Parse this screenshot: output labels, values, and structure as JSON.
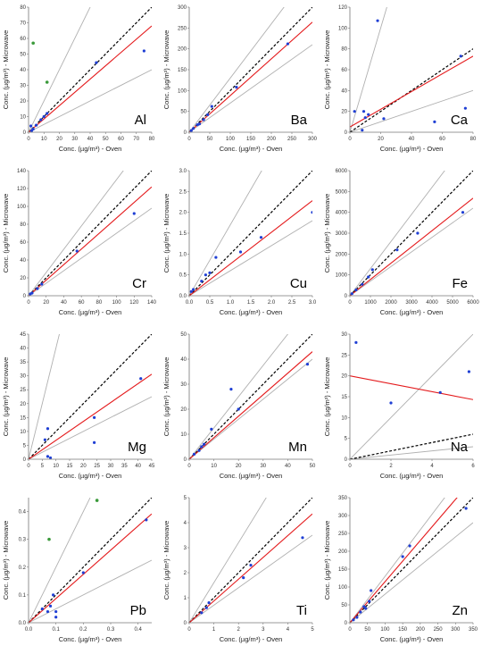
{
  "colors": {
    "one_to_one": "#000000",
    "ratio_bounds": "#b0b0b0",
    "regression": "#e41a1c",
    "points_blue": "#1f3fd4",
    "points_green": "#3a9a3a",
    "axis": "#777777"
  },
  "chart_data": [
    {
      "type": "scatter",
      "title": "Al",
      "xlabel": "Conc. (µg/m³) - Oven",
      "ylabel": "Conc. (µg/m³) - Microwave",
      "xlim": [
        0,
        80
      ],
      "ylim": [
        0,
        80
      ],
      "xticks": [
        "0",
        "10",
        "20",
        "30",
        "40",
        "50",
        "60",
        "70",
        "80"
      ],
      "yticks": [
        "0",
        "10",
        "20",
        "30",
        "40",
        "50",
        "60",
        "70",
        "80"
      ],
      "bound_slopes": [
        0.5,
        2
      ],
      "regression": [
        0,
        0.85
      ],
      "points": [
        [
          1.5,
          4
        ],
        [
          2,
          1
        ],
        [
          3,
          2
        ],
        [
          5,
          4.5
        ],
        [
          8,
          8
        ],
        [
          10,
          10
        ],
        [
          12,
          12
        ],
        [
          44,
          44.5
        ],
        [
          75,
          52
        ]
      ],
      "green_points": [
        [
          3,
          57
        ],
        [
          12,
          32
        ]
      ]
    },
    {
      "type": "scatter",
      "title": "Ba",
      "xlabel": "Conc. (µg/m³) - Oven",
      "ylabel": "Conc. (µg/m³) - Microwave",
      "xlim": [
        0,
        300
      ],
      "ylim": [
        0,
        300
      ],
      "xticks": [
        "0",
        "50",
        "100",
        "150",
        "200",
        "250",
        "300"
      ],
      "yticks": [
        "0",
        "50",
        "100",
        "150",
        "200",
        "250",
        "300"
      ],
      "bound_slopes": [
        0.7,
        1.3
      ],
      "regression": [
        0,
        0.88
      ],
      "points": [
        [
          5,
          4
        ],
        [
          10,
          9
        ],
        [
          20,
          18
        ],
        [
          25,
          20
        ],
        [
          35,
          30
        ],
        [
          45,
          42
        ],
        [
          55,
          62
        ],
        [
          115,
          108
        ],
        [
          240,
          212
        ]
      ],
      "green_points": []
    },
    {
      "type": "scatter",
      "title": "Ca",
      "xlabel": "Conc. (µg/m³) - Oven",
      "ylabel": "Conc. (µg/m³) - Microwave",
      "xlim": [
        0,
        80
      ],
      "ylim": [
        0,
        120
      ],
      "xticks": [
        "0",
        "20",
        "40",
        "60",
        "80"
      ],
      "yticks": [
        "0",
        "20",
        "40",
        "60",
        "80",
        "100",
        "120"
      ],
      "bound_slopes": [
        0.5,
        5
      ],
      "regression": [
        5,
        0.85
      ],
      "points": [
        [
          3,
          20
        ],
        [
          8,
          2
        ],
        [
          9,
          20
        ],
        [
          10,
          14
        ],
        [
          12,
          17
        ],
        [
          18,
          107
        ],
        [
          22,
          13
        ],
        [
          55,
          10
        ],
        [
          72,
          73
        ],
        [
          75,
          23
        ]
      ],
      "green_points": []
    },
    {
      "type": "scatter",
      "title": "Cr",
      "xlabel": "Conc. (µg/m³) - Oven",
      "ylabel": "Conc. (µg/m³) - Microwave",
      "xlim": [
        0,
        140
      ],
      "ylim": [
        0,
        140
      ],
      "xticks": [
        "0",
        "20",
        "40",
        "60",
        "80",
        "100",
        "120",
        "140"
      ],
      "yticks": [
        "0",
        "20",
        "40",
        "60",
        "80",
        "100",
        "120",
        "140"
      ],
      "bound_slopes": [
        0.7,
        1.3
      ],
      "regression": [
        0,
        0.87
      ],
      "points": [
        [
          2,
          2
        ],
        [
          4,
          3
        ],
        [
          10,
          8
        ],
        [
          15,
          13
        ],
        [
          55,
          50
        ],
        [
          120,
          92
        ]
      ],
      "green_points": []
    },
    {
      "type": "scatter",
      "title": "Cu",
      "xlabel": "Conc. (µg/m³) - Oven",
      "ylabel": "Conc. (µg/m³) - Microwave",
      "xlim": [
        0,
        3
      ],
      "ylim": [
        0,
        3
      ],
      "xticks": [
        "0.0",
        "0.5",
        "1.0",
        "1.5",
        "2.0",
        "2.5",
        "3.0"
      ],
      "yticks": [
        "0.0",
        "0.5",
        "1.0",
        "1.5",
        "2.0",
        "2.5",
        "3.0"
      ],
      "bound_slopes": [
        0.6,
        1.7
      ],
      "regression": [
        0,
        0.76
      ],
      "points": [
        [
          0.05,
          0.1
        ],
        [
          0.1,
          0.15
        ],
        [
          0.3,
          0.35
        ],
        [
          0.4,
          0.5
        ],
        [
          0.5,
          0.55
        ],
        [
          0.65,
          0.92
        ],
        [
          1.25,
          1.05
        ],
        [
          1.75,
          1.4
        ],
        [
          3.0,
          2.0
        ]
      ],
      "green_points": []
    },
    {
      "type": "scatter",
      "title": "Fe",
      "xlabel": "Conc. (µg/m³) - Oven",
      "ylabel": "Conc. (µg/m³) - Microwave",
      "xlim": [
        0,
        6000
      ],
      "ylim": [
        0,
        6000
      ],
      "xticks": [
        "0",
        "1000",
        "2000",
        "3000",
        "4000",
        "5000",
        "6000"
      ],
      "yticks": [
        "0",
        "1000",
        "2000",
        "3000",
        "4000",
        "5000",
        "6000"
      ],
      "bound_slopes": [
        0.7,
        1.3
      ],
      "regression": [
        0,
        0.78
      ],
      "points": [
        [
          100,
          100
        ],
        [
          300,
          280
        ],
        [
          600,
          550
        ],
        [
          900,
          900
        ],
        [
          1100,
          1250
        ],
        [
          2300,
          2200
        ],
        [
          3300,
          3000
        ],
        [
          5500,
          4000
        ]
      ],
      "green_points": []
    },
    {
      "type": "scatter",
      "title": "Mg",
      "xlabel": "Conc. (µg/m³) - Oven",
      "ylabel": "Conc. (µg/m³) - Microwave",
      "xlim": [
        0,
        45
      ],
      "ylim": [
        0,
        45
      ],
      "xticks": [
        "0",
        "5",
        "10",
        "15",
        "20",
        "25",
        "30",
        "35",
        "40",
        "45"
      ],
      "yticks": [
        "0",
        "5",
        "10",
        "15",
        "20",
        "25",
        "30",
        "35",
        "40",
        "45"
      ],
      "bound_slopes": [
        0.5,
        4
      ],
      "regression": [
        0,
        0.68
      ],
      "points": [
        [
          6,
          7
        ],
        [
          7,
          1
        ],
        [
          7,
          11
        ],
        [
          8,
          0.5
        ],
        [
          24,
          6
        ],
        [
          24,
          15
        ],
        [
          41,
          29
        ]
      ],
      "green_points": []
    },
    {
      "type": "scatter",
      "title": "Mn",
      "xlabel": "Conc. (µg/m³) - Oven",
      "ylabel": "Conc. (µg/m³) - Microwave",
      "xlim": [
        0,
        50
      ],
      "ylim": [
        0,
        50
      ],
      "xticks": [
        "0",
        "10",
        "20",
        "30",
        "40",
        "50"
      ],
      "yticks": [
        "0",
        "10",
        "20",
        "30",
        "40",
        "50"
      ],
      "bound_slopes": [
        0.8,
        1.25
      ],
      "regression": [
        0,
        0.86
      ],
      "points": [
        [
          2,
          2
        ],
        [
          4,
          3.5
        ],
        [
          5,
          5
        ],
        [
          6,
          6
        ],
        [
          9,
          12
        ],
        [
          17,
          28
        ],
        [
          20,
          20
        ],
        [
          48,
          38
        ]
      ],
      "green_points": []
    },
    {
      "type": "scatter",
      "title": "Na",
      "xlabel": "Conc. (µg/m³) - Oven",
      "ylabel": "Conc. (µg/m³) - Microwave",
      "xlim": [
        0,
        6
      ],
      "ylim": [
        0,
        30
      ],
      "xticks": [
        "0",
        "2",
        "4",
        "6"
      ],
      "yticks": [
        "0",
        "5",
        "10",
        "15",
        "20",
        "25",
        "30"
      ],
      "bound_slopes": [
        0.5,
        5
      ],
      "regression": [
        20,
        -0.95
      ],
      "points": [
        [
          0.3,
          28
        ],
        [
          2,
          13.5
        ],
        [
          4.4,
          16
        ],
        [
          5.8,
          21
        ]
      ],
      "green_points": []
    },
    {
      "type": "scatter",
      "title": "Pb",
      "xlabel": "Conc. (µg/m³) - Oven",
      "ylabel": "Conc. (µg/m³) - Microwave",
      "xlim": [
        0,
        0.45
      ],
      "ylim": [
        0,
        0.45
      ],
      "xticks": [
        "0.0",
        "0.1",
        "0.2",
        "0.3",
        "0.4"
      ],
      "yticks": [
        "0.0",
        "0.1",
        "0.2",
        "0.3",
        "0.4"
      ],
      "bound_slopes": [
        0.5,
        2
      ],
      "regression": [
        0,
        0.87
      ],
      "points": [
        [
          0.05,
          0.05
        ],
        [
          0.07,
          0.04
        ],
        [
          0.08,
          0.06
        ],
        [
          0.09,
          0.1
        ],
        [
          0.1,
          0.02
        ],
        [
          0.1,
          0.04
        ],
        [
          0.2,
          0.18
        ],
        [
          0.43,
          0.37
        ]
      ],
      "green_points": [
        [
          0.075,
          0.3
        ],
        [
          0.25,
          0.44
        ]
      ]
    },
    {
      "type": "scatter",
      "title": "Ti",
      "xlabel": "Conc. (µg/m³) - Oven",
      "ylabel": "Conc. (µg/m³) - Microwave",
      "xlim": [
        0,
        5
      ],
      "ylim": [
        0,
        5
      ],
      "xticks": [
        "0",
        "1",
        "2",
        "3",
        "4",
        "5"
      ],
      "yticks": [
        "0",
        "1",
        "2",
        "3",
        "4",
        "5"
      ],
      "bound_slopes": [
        0.7,
        1.6
      ],
      "regression": [
        0,
        0.87
      ],
      "points": [
        [
          0.5,
          0.4
        ],
        [
          0.7,
          0.6
        ],
        [
          0.8,
          0.8
        ],
        [
          2.2,
          1.8
        ],
        [
          2.5,
          2.3
        ],
        [
          4.6,
          3.4
        ]
      ],
      "green_points": []
    },
    {
      "type": "scatter",
      "title": "Zn",
      "xlabel": "Conc. (µg/m³) - Oven",
      "ylabel": "Conc. (µg/m³) - Microwave",
      "xlim": [
        0,
        350
      ],
      "ylim": [
        0,
        350
      ],
      "xticks": [
        "0",
        "50",
        "100",
        "150",
        "200",
        "250",
        "300",
        "350"
      ],
      "yticks": [
        "0",
        "50",
        "100",
        "150",
        "200",
        "250",
        "300",
        "350"
      ],
      "bound_slopes": [
        0.8,
        1.3
      ],
      "regression": [
        0,
        1.15
      ],
      "points": [
        [
          10,
          8
        ],
        [
          20,
          15
        ],
        [
          30,
          30
        ],
        [
          40,
          45
        ],
        [
          45,
          40
        ],
        [
          55,
          60
        ],
        [
          60,
          90
        ],
        [
          150,
          185
        ],
        [
          170,
          215
        ],
        [
          330,
          320
        ]
      ],
      "green_points": []
    }
  ]
}
